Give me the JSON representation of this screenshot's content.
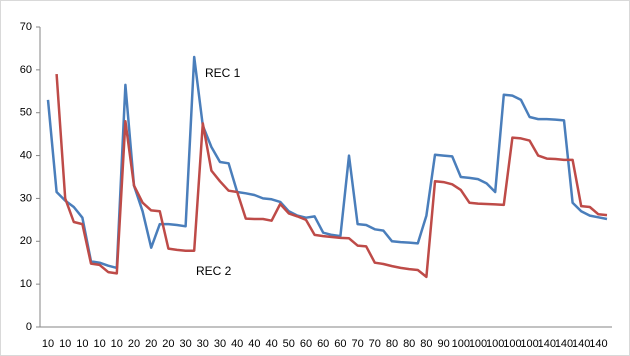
{
  "chart_data": {
    "type": "line",
    "categories": [
      "10",
      null,
      "10",
      null,
      "10",
      null,
      "10",
      null,
      "10",
      null,
      "20",
      null,
      "20",
      null,
      "20",
      null,
      "30",
      null,
      "30",
      null,
      "30",
      null,
      "40",
      null,
      "40",
      null,
      "40",
      null,
      "50",
      null,
      "60",
      null,
      "60",
      null,
      "60",
      null,
      "70",
      null,
      "70",
      null,
      "80",
      null,
      "80",
      null,
      "80",
      null,
      "90",
      null,
      "100",
      null,
      "100",
      null,
      "100",
      null,
      "100",
      null,
      "100",
      null,
      "140",
      null,
      "140",
      null,
      "140",
      null,
      "140",
      null
    ],
    "series": [
      {
        "name": "REC 1",
        "color": "#4a7ebb",
        "values": [
          53,
          31.5,
          29.5,
          28,
          25.5,
          15.3,
          15,
          14.3,
          13.8,
          56.5,
          33,
          27,
          18.5,
          24,
          24,
          23.8,
          23.5,
          63,
          47,
          42,
          38.5,
          38.2,
          31.5,
          31.2,
          30.8,
          30,
          29.8,
          29.2,
          27,
          26,
          25.5,
          25.8,
          22,
          21.5,
          21.2,
          40,
          24,
          23.8,
          22.8,
          22.5,
          20,
          19.8,
          19.7,
          19.5,
          26,
          40.2,
          40,
          39.8,
          35,
          34.8,
          34.5,
          33.5,
          31.5,
          54.2,
          54,
          53,
          49,
          48.5,
          48.5,
          48.4,
          48.2,
          29,
          27,
          26,
          25.6,
          25.2
        ]
      },
      {
        "name": "REC 2",
        "color": "#be4b48",
        "values": [
          null,
          59,
          30,
          24.5,
          24,
          14.8,
          14.5,
          12.8,
          12.5,
          48,
          33,
          29,
          27.2,
          27,
          18.3,
          18,
          17.8,
          17.8,
          47.5,
          36.5,
          34,
          31.8,
          31.5,
          25.3,
          25.2,
          25.2,
          24.8,
          28.7,
          26.5,
          25.8,
          25,
          21.5,
          21.2,
          21,
          20.8,
          20.7,
          19,
          18.8,
          15,
          14.7,
          14.2,
          13.8,
          13.5,
          13.3,
          11.7,
          34,
          33.8,
          33.3,
          32,
          29,
          28.8,
          28.7,
          28.6,
          28.5,
          44.2,
          44,
          43.5,
          40,
          39.3,
          39.2,
          39,
          39,
          28.2,
          28,
          26.3,
          26.1
        ]
      }
    ],
    "ylim": [
      0,
      70
    ],
    "yticks": [
      0,
      10,
      20,
      30,
      40,
      50,
      60,
      70
    ],
    "grid": false
  }
}
